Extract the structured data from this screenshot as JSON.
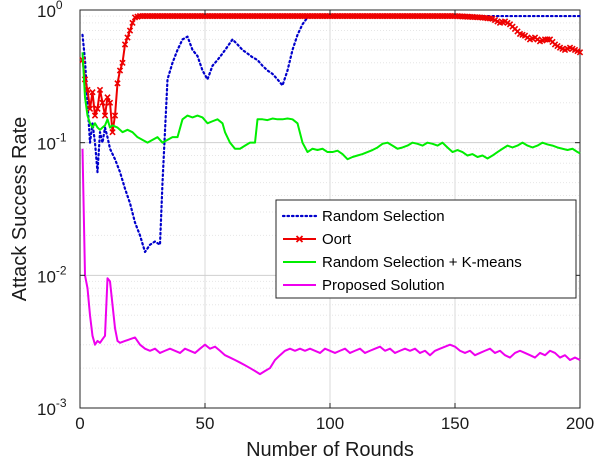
{
  "chart_data": {
    "type": "line",
    "xlabel": "Number of Rounds",
    "ylabel": "Attack Success Rate",
    "xlim": [
      0,
      200
    ],
    "ylim": [
      0.001,
      1
    ],
    "yscale": "log",
    "grid": true,
    "legend_position": "center-right",
    "x_ticks": [
      {
        "value": 0,
        "label": "0"
      },
      {
        "value": 50,
        "label": "50"
      },
      {
        "value": 100,
        "label": "100"
      },
      {
        "value": 150,
        "label": "150"
      },
      {
        "value": 200,
        "label": "200"
      }
    ],
    "y_ticks": [
      {
        "value": 0.001,
        "base": "10",
        "exp": "-3"
      },
      {
        "value": 0.01,
        "base": "10",
        "exp": "-2"
      },
      {
        "value": 0.1,
        "base": "10",
        "exp": "-1"
      },
      {
        "value": 1,
        "base": "10",
        "exp": "0"
      }
    ],
    "series": [
      {
        "name": "Random Selection",
        "color": "#0000cc",
        "style": "dotted",
        "points": [
          [
            1,
            0.65
          ],
          [
            2,
            0.42
          ],
          [
            3,
            0.2
          ],
          [
            4,
            0.1
          ],
          [
            5,
            0.14
          ],
          [
            6,
            0.1
          ],
          [
            7,
            0.06
          ],
          [
            8,
            0.12
          ],
          [
            9,
            0.1
          ],
          [
            10,
            0.13
          ],
          [
            11,
            0.11
          ],
          [
            12,
            0.09
          ],
          [
            14,
            0.075
          ],
          [
            16,
            0.06
          ],
          [
            18,
            0.045
          ],
          [
            20,
            0.035
          ],
          [
            22,
            0.025
          ],
          [
            24,
            0.02
          ],
          [
            26,
            0.015
          ],
          [
            28,
            0.017
          ],
          [
            30,
            0.018
          ],
          [
            32,
            0.017
          ],
          [
            33,
            0.05
          ],
          [
            35,
            0.3
          ],
          [
            37,
            0.4
          ],
          [
            39,
            0.5
          ],
          [
            41,
            0.6
          ],
          [
            43,
            0.63
          ],
          [
            45,
            0.5
          ],
          [
            47,
            0.45
          ],
          [
            49,
            0.35
          ],
          [
            51,
            0.3
          ],
          [
            53,
            0.38
          ],
          [
            55,
            0.42
          ],
          [
            57,
            0.47
          ],
          [
            59,
            0.53
          ],
          [
            61,
            0.6
          ],
          [
            63,
            0.55
          ],
          [
            65,
            0.5
          ],
          [
            67,
            0.47
          ],
          [
            69,
            0.44
          ],
          [
            71,
            0.42
          ],
          [
            73,
            0.38
          ],
          [
            75,
            0.35
          ],
          [
            77,
            0.33
          ],
          [
            79,
            0.3
          ],
          [
            81,
            0.27
          ],
          [
            83,
            0.35
          ],
          [
            85,
            0.5
          ],
          [
            87,
            0.65
          ],
          [
            89,
            0.78
          ],
          [
            91,
            0.88
          ],
          [
            93,
            0.9
          ],
          [
            200,
            0.9
          ]
        ]
      },
      {
        "name": "Oort",
        "color": "#ee0000",
        "style": "solid-x",
        "points": [
          [
            1,
            0.42
          ],
          [
            2,
            0.3
          ],
          [
            3,
            0.25
          ],
          [
            4,
            0.18
          ],
          [
            5,
            0.24
          ],
          [
            6,
            0.16
          ],
          [
            7,
            0.18
          ],
          [
            8,
            0.25
          ],
          [
            9,
            0.2
          ],
          [
            10,
            0.16
          ],
          [
            11,
            0.22
          ],
          [
            12,
            0.2
          ],
          [
            13,
            0.12
          ],
          [
            14,
            0.16
          ],
          [
            15,
            0.28
          ],
          [
            16,
            0.35
          ],
          [
            17,
            0.4
          ],
          [
            18,
            0.55
          ],
          [
            19,
            0.62
          ],
          [
            20,
            0.7
          ],
          [
            21,
            0.8
          ],
          [
            22,
            0.88
          ],
          [
            24,
            0.9
          ],
          [
            150,
            0.9
          ],
          [
            160,
            0.88
          ],
          [
            165,
            0.86
          ],
          [
            168,
            0.8
          ],
          [
            170,
            0.82
          ],
          [
            172,
            0.78
          ],
          [
            174,
            0.72
          ],
          [
            176,
            0.66
          ],
          [
            178,
            0.64
          ],
          [
            180,
            0.6
          ],
          [
            182,
            0.62
          ],
          [
            184,
            0.58
          ],
          [
            186,
            0.6
          ],
          [
            188,
            0.6
          ],
          [
            190,
            0.55
          ],
          [
            192,
            0.52
          ],
          [
            194,
            0.5
          ],
          [
            196,
            0.52
          ],
          [
            198,
            0.5
          ],
          [
            200,
            0.48
          ]
        ]
      },
      {
        "name": "Random Selection + K-means",
        "color": "#00ee00",
        "style": "solid",
        "points": [
          [
            1,
            0.48
          ],
          [
            2,
            0.22
          ],
          [
            3,
            0.16
          ],
          [
            4,
            0.14
          ],
          [
            5,
            0.13
          ],
          [
            6,
            0.14
          ],
          [
            7,
            0.13
          ],
          [
            8,
            0.125
          ],
          [
            9,
            0.13
          ],
          [
            10,
            0.135
          ],
          [
            11,
            0.15
          ],
          [
            12,
            0.13
          ],
          [
            13,
            0.135
          ],
          [
            15,
            0.13
          ],
          [
            17,
            0.12
          ],
          [
            19,
            0.125
          ],
          [
            21,
            0.12
          ],
          [
            23,
            0.11
          ],
          [
            25,
            0.105
          ],
          [
            27,
            0.1
          ],
          [
            29,
            0.105
          ],
          [
            31,
            0.11
          ],
          [
            33,
            0.1
          ],
          [
            35,
            0.105
          ],
          [
            37,
            0.11
          ],
          [
            39,
            0.11
          ],
          [
            41,
            0.15
          ],
          [
            43,
            0.16
          ],
          [
            45,
            0.155
          ],
          [
            47,
            0.16
          ],
          [
            49,
            0.155
          ],
          [
            51,
            0.14
          ],
          [
            53,
            0.145
          ],
          [
            55,
            0.15
          ],
          [
            57,
            0.14
          ],
          [
            58,
            0.12
          ],
          [
            60,
            0.1
          ],
          [
            62,
            0.09
          ],
          [
            64,
            0.09
          ],
          [
            66,
            0.095
          ],
          [
            68,
            0.1
          ],
          [
            70,
            0.1
          ],
          [
            71,
            0.15
          ],
          [
            73,
            0.15
          ],
          [
            75,
            0.148
          ],
          [
            77,
            0.152
          ],
          [
            79,
            0.15
          ],
          [
            81,
            0.15
          ],
          [
            83,
            0.152
          ],
          [
            85,
            0.15
          ],
          [
            87,
            0.14
          ],
          [
            89,
            0.1
          ],
          [
            91,
            0.085
          ],
          [
            93,
            0.09
          ],
          [
            95,
            0.088
          ],
          [
            97,
            0.09
          ],
          [
            99,
            0.085
          ],
          [
            101,
            0.085
          ],
          [
            103,
            0.087
          ],
          [
            105,
            0.082
          ],
          [
            107,
            0.075
          ],
          [
            109,
            0.078
          ],
          [
            111,
            0.08
          ],
          [
            113,
            0.082
          ],
          [
            115,
            0.085
          ],
          [
            117,
            0.088
          ],
          [
            119,
            0.092
          ],
          [
            121,
            0.098
          ],
          [
            123,
            0.1
          ],
          [
            125,
            0.095
          ],
          [
            127,
            0.09
          ],
          [
            129,
            0.092
          ],
          [
            131,
            0.095
          ],
          [
            133,
            0.1
          ],
          [
            135,
            0.098
          ],
          [
            137,
            0.095
          ],
          [
            139,
            0.1
          ],
          [
            141,
            0.098
          ],
          [
            143,
            0.095
          ],
          [
            145,
            0.1
          ],
          [
            147,
            0.092
          ],
          [
            149,
            0.085
          ],
          [
            151,
            0.088
          ],
          [
            153,
            0.085
          ],
          [
            155,
            0.08
          ],
          [
            157,
            0.082
          ],
          [
            159,
            0.078
          ],
          [
            161,
            0.08
          ],
          [
            163,
            0.076
          ],
          [
            165,
            0.08
          ],
          [
            167,
            0.085
          ],
          [
            169,
            0.09
          ],
          [
            171,
            0.095
          ],
          [
            173,
            0.092
          ],
          [
            175,
            0.095
          ],
          [
            177,
            0.1
          ],
          [
            179,
            0.095
          ],
          [
            181,
            0.092
          ],
          [
            183,
            0.095
          ],
          [
            185,
            0.1
          ],
          [
            187,
            0.097
          ],
          [
            189,
            0.095
          ],
          [
            191,
            0.092
          ],
          [
            193,
            0.09
          ],
          [
            195,
            0.088
          ],
          [
            197,
            0.09
          ],
          [
            199,
            0.085
          ],
          [
            200,
            0.083
          ]
        ]
      },
      {
        "name": "Proposed Solution",
        "color": "#ee00ee",
        "style": "solid",
        "points": [
          [
            1,
            0.09
          ],
          [
            2,
            0.01
          ],
          [
            3,
            0.008
          ],
          [
            4,
            0.005
          ],
          [
            5,
            0.0035
          ],
          [
            6,
            0.003
          ],
          [
            7,
            0.0032
          ],
          [
            8,
            0.0031
          ],
          [
            9,
            0.0033
          ],
          [
            10,
            0.0035
          ],
          [
            11,
            0.0095
          ],
          [
            12,
            0.009
          ],
          [
            13,
            0.006
          ],
          [
            14,
            0.004
          ],
          [
            15,
            0.0032
          ],
          [
            16,
            0.0031
          ],
          [
            18,
            0.0032
          ],
          [
            20,
            0.0033
          ],
          [
            22,
            0.0034
          ],
          [
            24,
            0.003
          ],
          [
            26,
            0.0028
          ],
          [
            28,
            0.0027
          ],
          [
            30,
            0.0028
          ],
          [
            32,
            0.0026
          ],
          [
            34,
            0.0027
          ],
          [
            36,
            0.0028
          ],
          [
            38,
            0.0027
          ],
          [
            40,
            0.0026
          ],
          [
            42,
            0.0028
          ],
          [
            44,
            0.0027
          ],
          [
            46,
            0.0026
          ],
          [
            48,
            0.0028
          ],
          [
            50,
            0.003
          ],
          [
            52,
            0.0028
          ],
          [
            54,
            0.0029
          ],
          [
            56,
            0.0027
          ],
          [
            58,
            0.0025
          ],
          [
            60,
            0.0024
          ],
          [
            62,
            0.0023
          ],
          [
            64,
            0.0022
          ],
          [
            66,
            0.0021
          ],
          [
            68,
            0.002
          ],
          [
            70,
            0.0019
          ],
          [
            72,
            0.0018
          ],
          [
            74,
            0.0019
          ],
          [
            76,
            0.002
          ],
          [
            78,
            0.0023
          ],
          [
            80,
            0.0025
          ],
          [
            82,
            0.0027
          ],
          [
            84,
            0.0028
          ],
          [
            86,
            0.0027
          ],
          [
            88,
            0.0028
          ],
          [
            90,
            0.0027
          ],
          [
            92,
            0.0028
          ],
          [
            94,
            0.0027
          ],
          [
            96,
            0.0026
          ],
          [
            98,
            0.0028
          ],
          [
            100,
            0.0027
          ],
          [
            102,
            0.0026
          ],
          [
            104,
            0.0027
          ],
          [
            106,
            0.0028
          ],
          [
            108,
            0.0026
          ],
          [
            110,
            0.0027
          ],
          [
            112,
            0.0028
          ],
          [
            114,
            0.0026
          ],
          [
            116,
            0.0027
          ],
          [
            118,
            0.0028
          ],
          [
            120,
            0.0029
          ],
          [
            122,
            0.0027
          ],
          [
            124,
            0.0028
          ],
          [
            126,
            0.0026
          ],
          [
            128,
            0.0027
          ],
          [
            130,
            0.0028
          ],
          [
            132,
            0.0027
          ],
          [
            134,
            0.0028
          ],
          [
            136,
            0.0026
          ],
          [
            138,
            0.0027
          ],
          [
            140,
            0.0025
          ],
          [
            142,
            0.0027
          ],
          [
            144,
            0.0028
          ],
          [
            146,
            0.0029
          ],
          [
            148,
            0.003
          ],
          [
            150,
            0.0029
          ],
          [
            152,
            0.0027
          ],
          [
            154,
            0.0026
          ],
          [
            156,
            0.0027
          ],
          [
            158,
            0.0025
          ],
          [
            160,
            0.0026
          ],
          [
            162,
            0.0027
          ],
          [
            164,
            0.0028
          ],
          [
            166,
            0.0026
          ],
          [
            168,
            0.0027
          ],
          [
            170,
            0.0025
          ],
          [
            172,
            0.0024
          ],
          [
            174,
            0.0026
          ],
          [
            176,
            0.0027
          ],
          [
            178,
            0.0026
          ],
          [
            180,
            0.0025
          ],
          [
            182,
            0.0024
          ],
          [
            184,
            0.0026
          ],
          [
            186,
            0.0025
          ],
          [
            188,
            0.0027
          ],
          [
            190,
            0.0026
          ],
          [
            192,
            0.0024
          ],
          [
            194,
            0.0025
          ],
          [
            196,
            0.0023
          ],
          [
            198,
            0.0024
          ],
          [
            200,
            0.0023
          ]
        ]
      }
    ]
  }
}
